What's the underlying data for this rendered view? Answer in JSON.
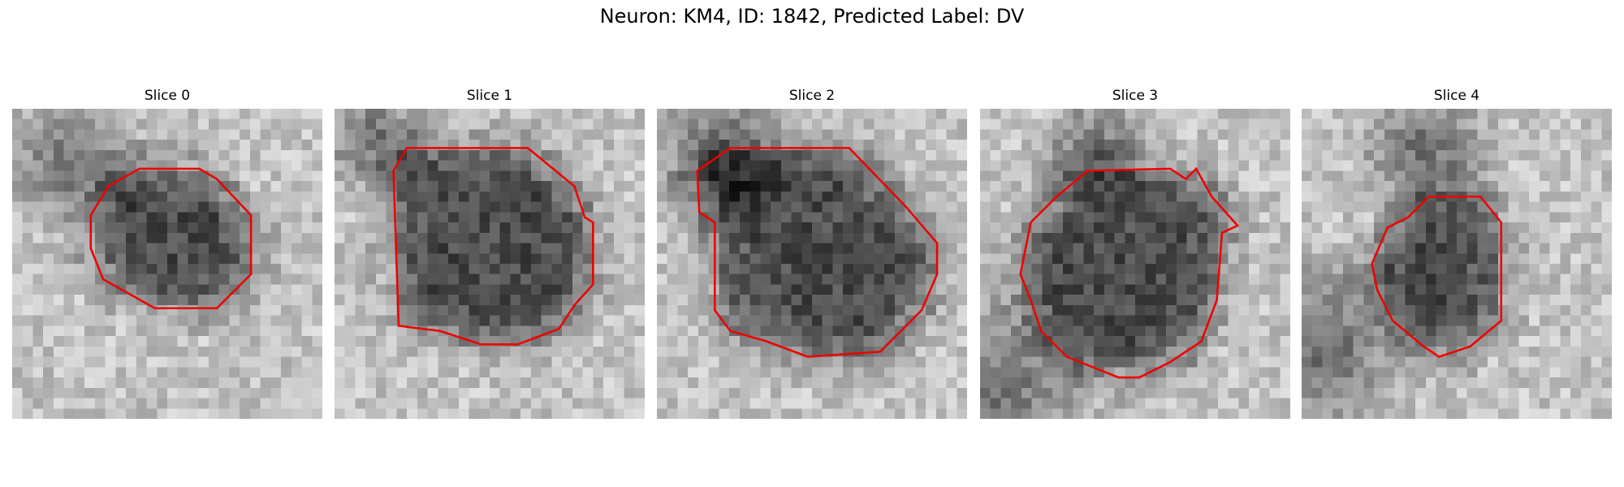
{
  "title": "Neuron: KM4, ID: 1842, Predicted Label: DV",
  "panels": [
    {
      "title": "Slice 0"
    },
    {
      "title": "Slice 1"
    },
    {
      "title": "Slice 2"
    },
    {
      "title": "Slice 3"
    },
    {
      "title": "Slice 4"
    }
  ]
}
